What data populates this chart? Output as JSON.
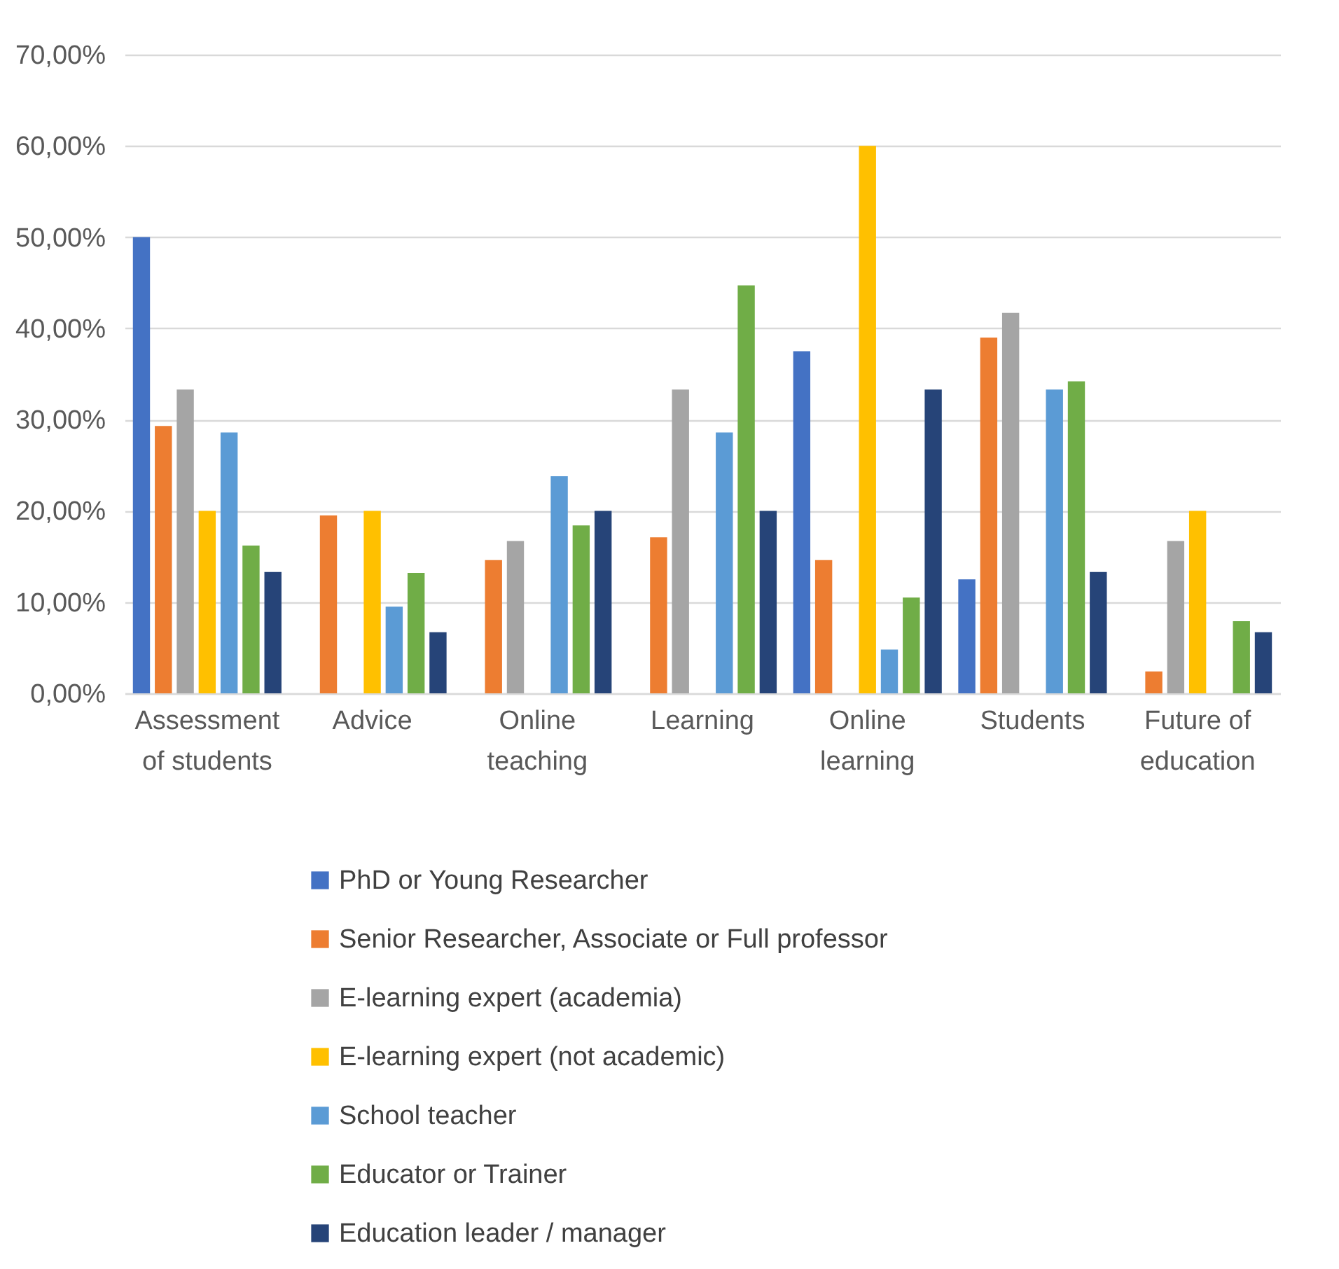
{
  "chart_data": {
    "type": "bar",
    "categories": [
      "Assessment of students",
      "Advice",
      "Online teaching",
      "Learning",
      "Online learning",
      "Students",
      "Future of education"
    ],
    "series": [
      {
        "name": "PhD or Young Researcher",
        "color": "#4472c4",
        "values": [
          50,
          null,
          null,
          null,
          37.5,
          12.5,
          null
        ]
      },
      {
        "name": "Senior Researcher, Associate or Full professor",
        "color": "#ed7d31",
        "values": [
          29.3,
          19.5,
          14.6,
          17.1,
          14.6,
          39.0,
          2.4
        ]
      },
      {
        "name": "E-learning expert (academia)",
        "color": "#a5a5a5",
        "values": [
          33.3,
          null,
          16.7,
          33.3,
          null,
          41.7,
          16.7
        ]
      },
      {
        "name": "E-learning expert (not academic)",
        "color": "#ffc000",
        "values": [
          20,
          20,
          null,
          null,
          60,
          null,
          20
        ]
      },
      {
        "name": "School teacher",
        "color": "#5b9bd5",
        "values": [
          28.6,
          9.5,
          23.8,
          28.6,
          4.8,
          33.3,
          null
        ]
      },
      {
        "name": "Educator or Trainer",
        "color": "#70ad47",
        "values": [
          16.2,
          13.2,
          18.4,
          44.7,
          10.5,
          34.2,
          7.9
        ]
      },
      {
        "name": "Education leader / manager",
        "color": "#264478",
        "values": [
          13.3,
          6.7,
          20,
          20,
          33.3,
          13.3,
          6.7
        ]
      }
    ],
    "ylim": [
      0,
      70
    ],
    "yticks": [
      {
        "value": 0,
        "label": "0,00%"
      },
      {
        "value": 10,
        "label": "10,00%"
      },
      {
        "value": 20,
        "label": "20,00%"
      },
      {
        "value": 30,
        "label": "30,00%"
      },
      {
        "value": 40,
        "label": "40,00%"
      },
      {
        "value": 50,
        "label": "50,00%"
      },
      {
        "value": 60,
        "label": "60,00%"
      },
      {
        "value": 70,
        "label": "70,00%"
      }
    ],
    "grid": "y",
    "legend": "bottom"
  }
}
